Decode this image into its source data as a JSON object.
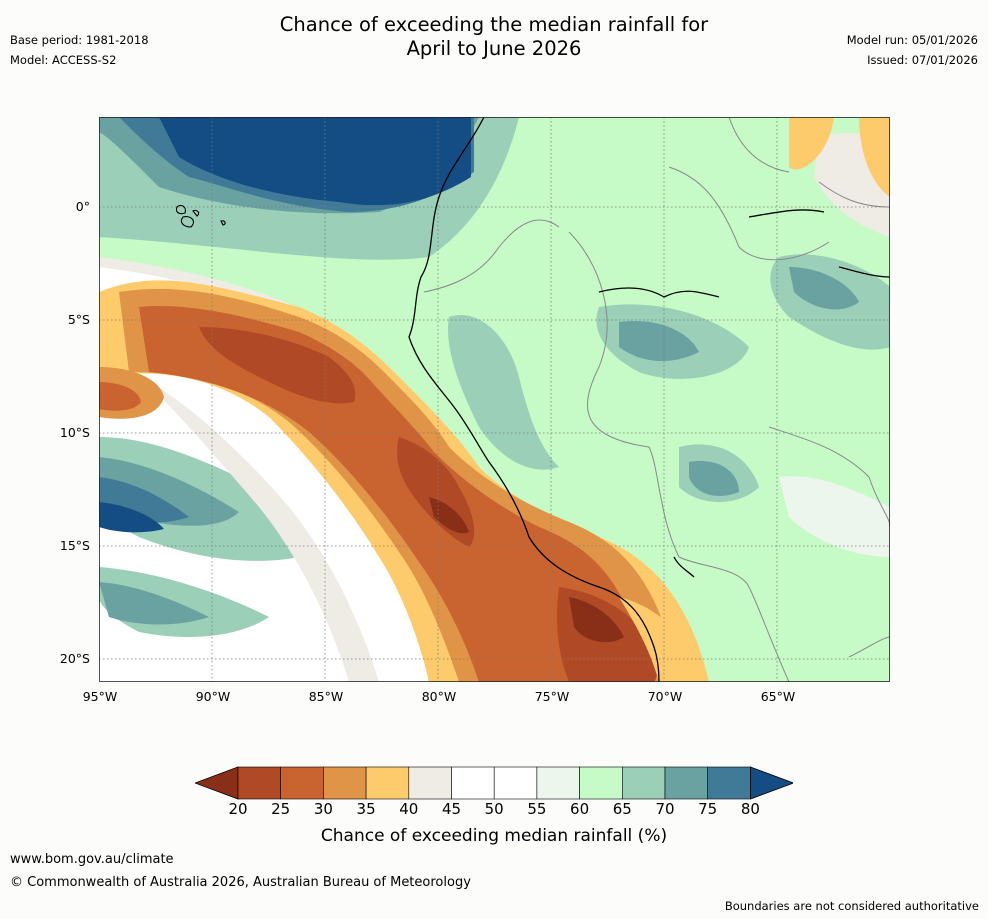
{
  "header": {
    "title_line1": "Chance of exceeding the median rainfall for",
    "title_line2": "April to June 2026",
    "base_period": "Base period: 1981-2018",
    "model": "Model: ACCESS-S2",
    "model_run": "Model run: 05/01/2026",
    "issued": "Issued: 07/01/2026"
  },
  "map": {
    "lat_labels": [
      "0°",
      "5°S",
      "10°S",
      "15°S",
      "20°S"
    ],
    "lon_labels": [
      "95°W",
      "90°W",
      "85°W",
      "80°W",
      "75°W",
      "70°W",
      "65°W"
    ],
    "extent": {
      "lon_min": -95,
      "lon_max": -60,
      "lat_min": -21,
      "lat_max": 4
    },
    "grid": true
  },
  "colorbar": {
    "label": "Chance of exceeding median rainfall (%)",
    "ticks": [
      "20",
      "25",
      "30",
      "35",
      "40",
      "45",
      "50",
      "55",
      "60",
      "65",
      "70",
      "75",
      "80"
    ],
    "colors": [
      "#8a2f17",
      "#b04a26",
      "#c96430",
      "#e09448",
      "#fecb6c",
      "#efebe5",
      "#ffffff",
      "#ffffff",
      "#edf6ed",
      "#c6fbc7",
      "#9bcfb8",
      "#6aa2a1",
      "#407a97",
      "#134d84"
    ]
  },
  "footer": {
    "url": "www.bom.gov.au/climate",
    "copyright": "© Commonwealth of Australia 2026, Australian Bureau of Meteorology",
    "disclaimer": "Boundaries are not considered authoritative"
  }
}
